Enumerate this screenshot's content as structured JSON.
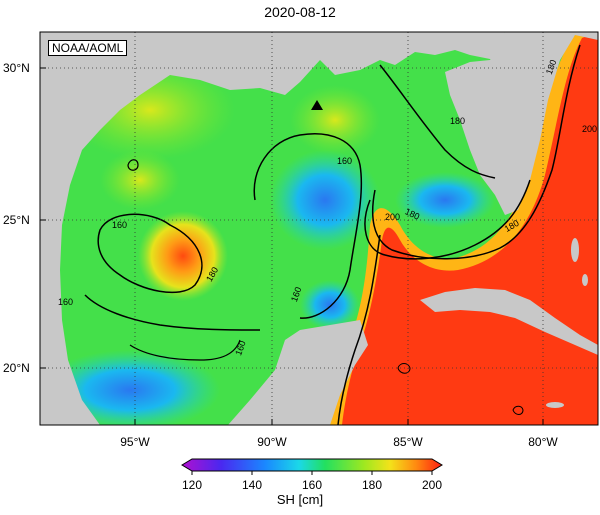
{
  "title": "2020-08-12",
  "credit": "NOAA/AOML",
  "axes": {
    "lat_ticks": [
      "30°N",
      "25°N",
      "20°N"
    ],
    "lon_ticks": [
      "95°W",
      "90°W",
      "85°W",
      "80°W"
    ]
  },
  "contour_labels": [
    "160",
    "160",
    "160",
    "160",
    "160",
    "180",
    "180",
    "180",
    "200",
    "200",
    "180",
    "180"
  ],
  "colorbar": {
    "label": "SH [cm]",
    "ticks": [
      "120",
      "140",
      "160",
      "180",
      "200"
    ],
    "min": 120,
    "max": 200
  },
  "marker": "triangle-marker",
  "colors": {
    "land": "#c8c8c8",
    "low": "#2a7de1",
    "mid": "#37d84a",
    "high": "#ff2a10"
  }
}
